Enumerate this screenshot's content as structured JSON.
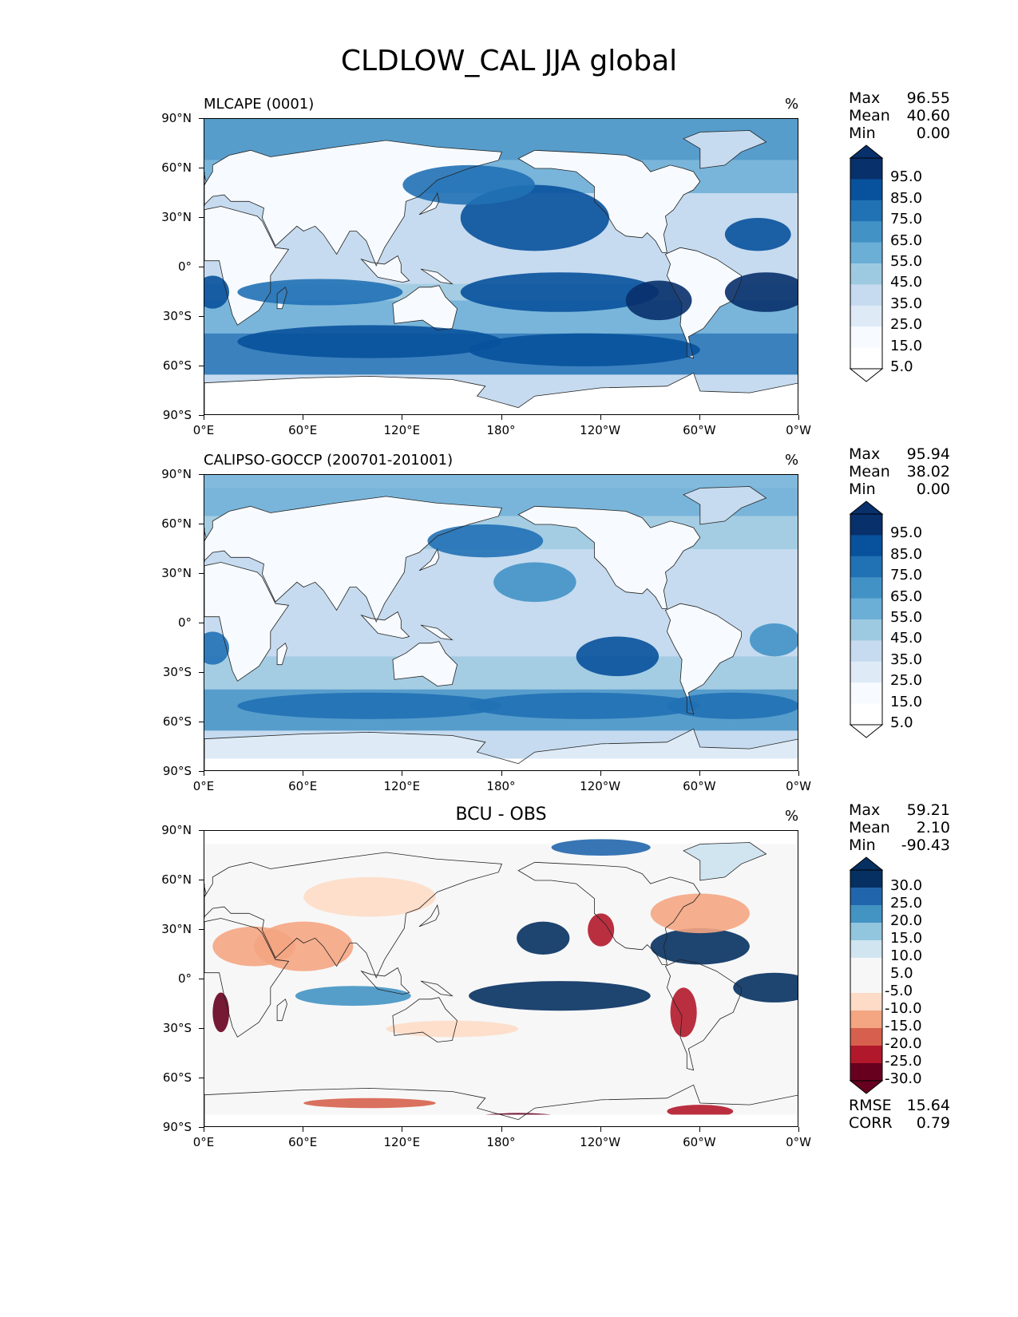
{
  "figure": {
    "title": "CLDLOW_CAL JJA global"
  },
  "axes": {
    "lat_ticks": [
      "90°N",
      "60°N",
      "30°N",
      "0°",
      "30°S",
      "60°S",
      "90°S"
    ],
    "lon_ticks": [
      "0°E",
      "60°E",
      "120°E",
      "180°",
      "120°W",
      "60°W",
      "0°W"
    ]
  },
  "panels": [
    {
      "title": "MLCAPE (0001)",
      "units": "%",
      "stats": {
        "max_label": "Max",
        "max": "96.55",
        "mean_label": "Mean",
        "mean": "40.60",
        "min_label": "Min",
        "min": "0.00"
      },
      "colorbar": {
        "levels": [
          "95.0",
          "85.0",
          "75.0",
          "65.0",
          "55.0",
          "45.0",
          "35.0",
          "25.0",
          "15.0",
          "5.0"
        ],
        "colors": [
          "#08306b",
          "#08519c",
          "#2171b5",
          "#4292c6",
          "#6baed6",
          "#9ecae1",
          "#c6dbef",
          "#deebf7",
          "#f7fbff",
          "#ffffff"
        ]
      }
    },
    {
      "title": "CALIPSO-GOCCP (200701-201001)",
      "units": "%",
      "stats": {
        "max_label": "Max",
        "max": "95.94",
        "mean_label": "Mean",
        "mean": "38.02",
        "min_label": "Min",
        "min": "0.00"
      },
      "colorbar": {
        "levels": [
          "95.0",
          "85.0",
          "75.0",
          "65.0",
          "55.0",
          "45.0",
          "35.0",
          "25.0",
          "15.0",
          "5.0"
        ],
        "colors": [
          "#08306b",
          "#08519c",
          "#2171b5",
          "#4292c6",
          "#6baed6",
          "#9ecae1",
          "#c6dbef",
          "#deebf7",
          "#f7fbff",
          "#ffffff"
        ]
      }
    },
    {
      "title": "BCU - OBS",
      "units": "%",
      "stats": {
        "max_label": "Max",
        "max": "59.21",
        "mean_label": "Mean",
        "mean": "2.10",
        "min_label": "Min",
        "min": "-90.43"
      },
      "colorbar": {
        "levels": [
          "30.0",
          "25.0",
          "20.0",
          "15.0",
          "10.0",
          "5.0",
          "-5.0",
          "-10.0",
          "-15.0",
          "-20.0",
          "-25.0",
          "-30.0"
        ],
        "colors": [
          "#053061",
          "#2166ac",
          "#4393c3",
          "#92c5de",
          "#d1e5f0",
          "#f7f7f7",
          "#f7f7f7",
          "#fddbc7",
          "#f4a582",
          "#d6604d",
          "#b2182b",
          "#67001f"
        ]
      },
      "metrics": {
        "rmse_label": "RMSE",
        "rmse": "15.64",
        "corr_label": "CORR",
        "corr": "0.79"
      }
    }
  ]
}
